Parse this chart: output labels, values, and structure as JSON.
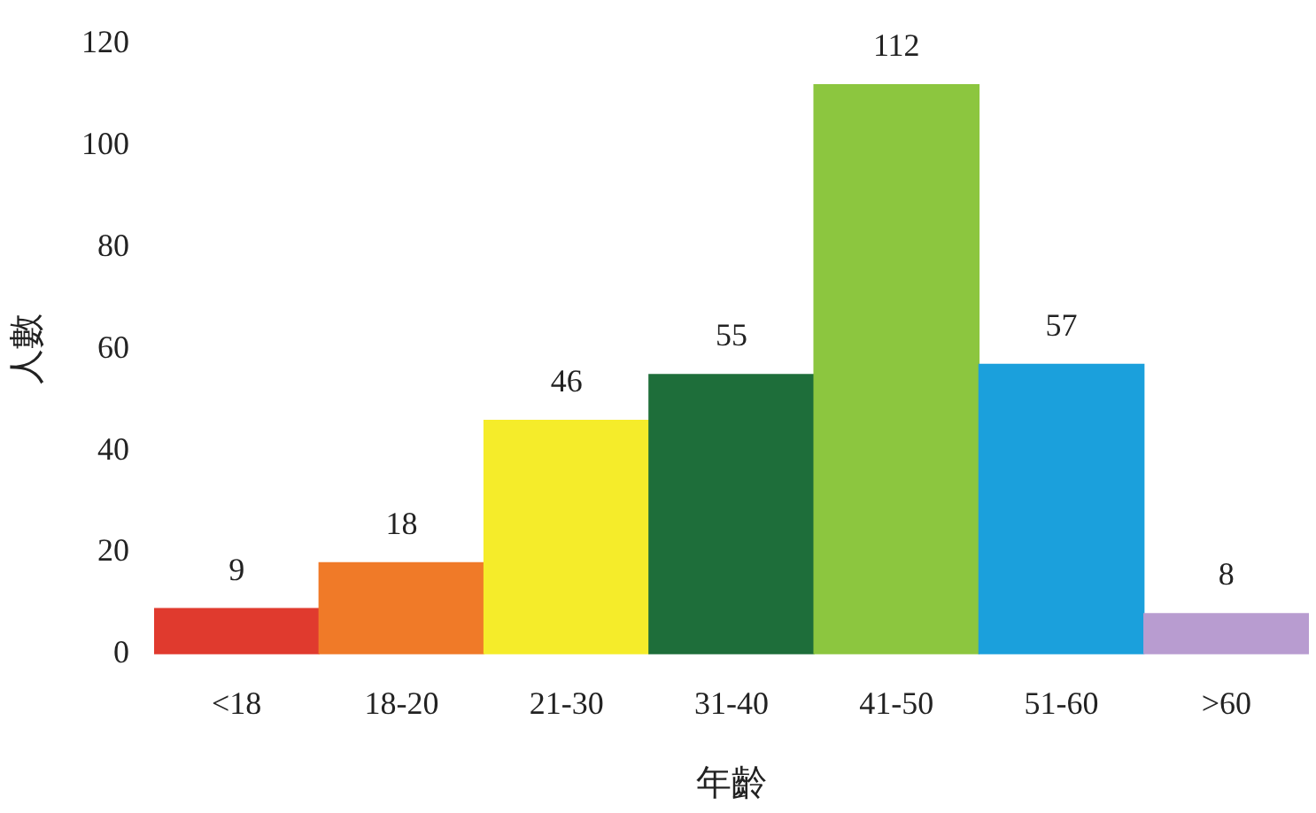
{
  "chart_data": {
    "type": "bar",
    "xlabel": "年齡",
    "ylabel": "人數",
    "categories": [
      "<18",
      "18-20",
      "21-30",
      "31-40",
      "41-50",
      "51-60",
      ">60"
    ],
    "values": [
      9,
      18,
      46,
      55,
      112,
      57,
      8
    ],
    "colors": [
      "#e03a2e",
      "#f07a28",
      "#f5ec2a",
      "#1e6e3a",
      "#8cc63f",
      "#1ba0dc",
      "#b89cd0"
    ],
    "ylim": [
      0,
      120
    ],
    "yticks": [
      0,
      20,
      40,
      60,
      80,
      100,
      120
    ],
    "grid": false,
    "legend": false,
    "data_labels": true
  }
}
